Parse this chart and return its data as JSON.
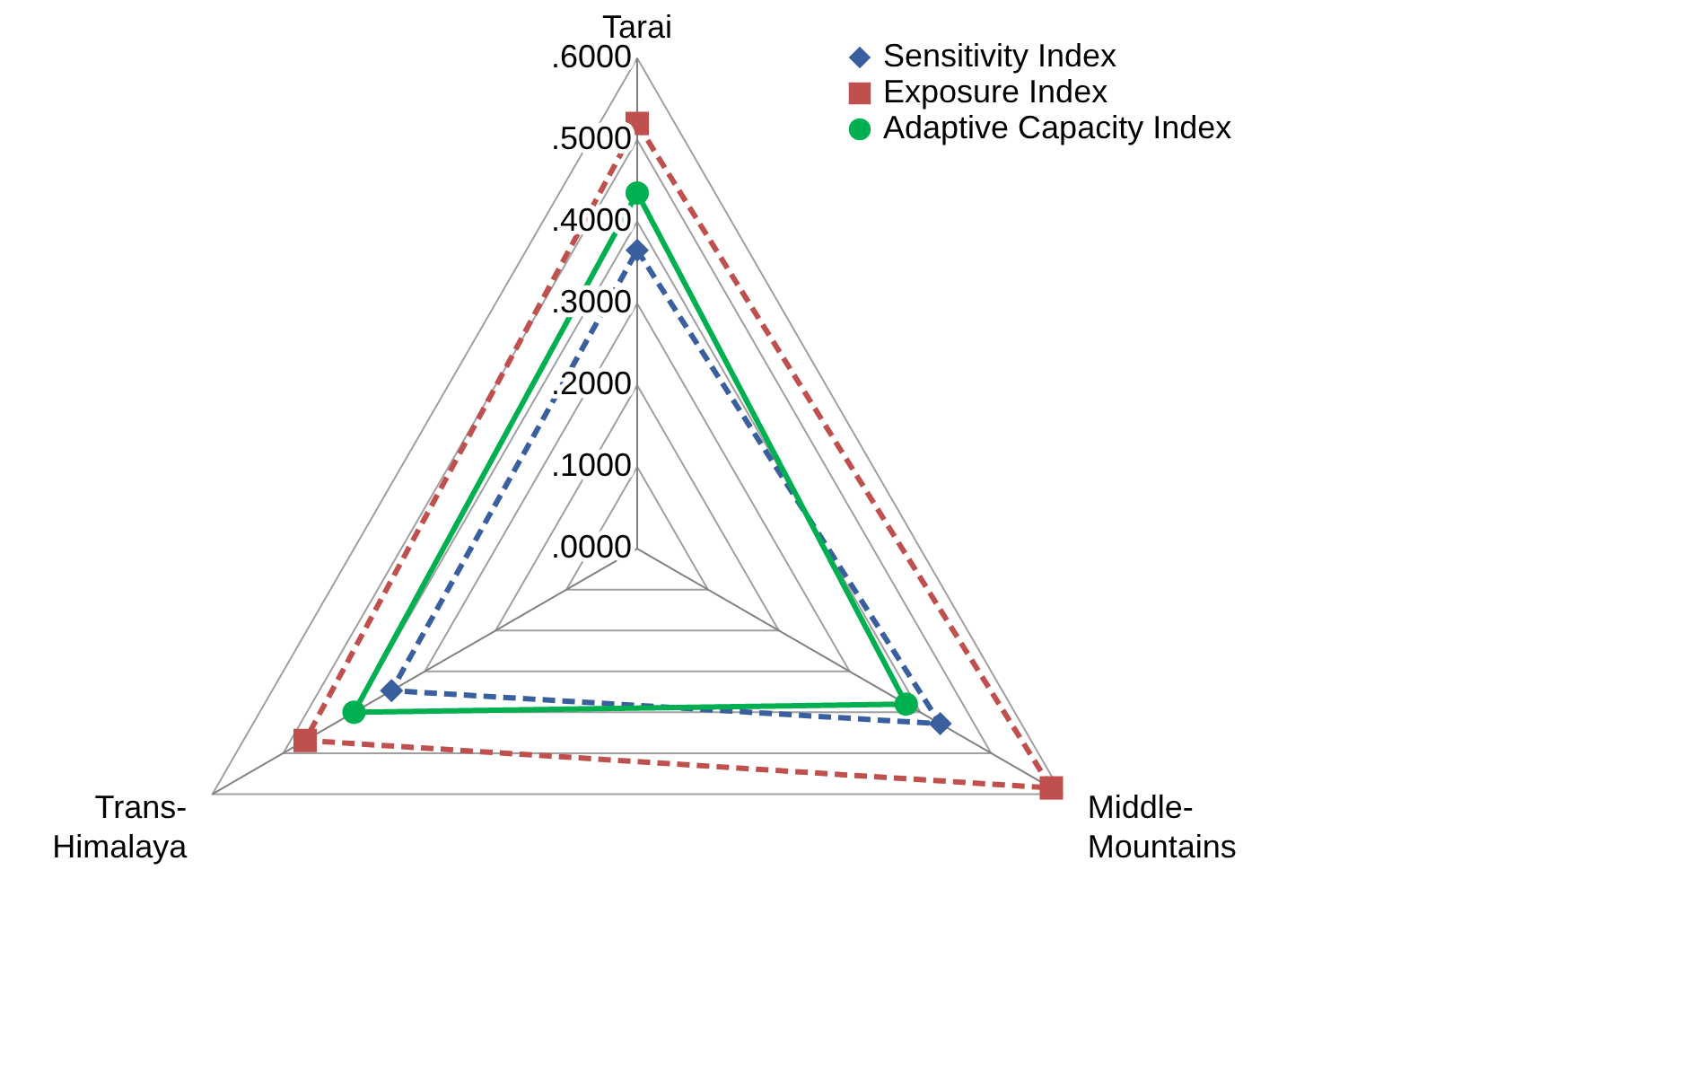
{
  "chart_data": {
    "type": "radar",
    "categories": [
      "Tarai",
      "Middle-\nMountains",
      "Trans-\nHimalaya"
    ],
    "series": [
      {
        "name": "Sensitivity Index",
        "color": "#3a5f9e",
        "values": [
          0.365,
          0.428,
          0.347
        ],
        "marker": "diamond",
        "line_style": "dashed"
      },
      {
        "name": "Exposure Index",
        "color": "#c0504d",
        "values": [
          0.52,
          0.585,
          0.469
        ],
        "marker": "square",
        "line_style": "dashed"
      },
      {
        "name": "Adaptive Capacity Index",
        "color": "#00b050",
        "values": [
          0.435,
          0.38,
          0.4
        ],
        "marker": "circle",
        "line_style": "solid"
      }
    ],
    "ylim": [
      0,
      0.6
    ],
    "yticks": [
      {
        "value": 0,
        "label": ".0000"
      },
      {
        "value": 0.1,
        "label": ".1000"
      },
      {
        "value": 0.2,
        "label": ".2000"
      },
      {
        "value": 0.3,
        "label": ".3000"
      },
      {
        "value": 0.4,
        "label": ".4000"
      },
      {
        "value": 0.5,
        "label": ".5000"
      },
      {
        "value": 0.6,
        "label": ".6000"
      }
    ],
    "grid": true,
    "legend": "top right"
  }
}
